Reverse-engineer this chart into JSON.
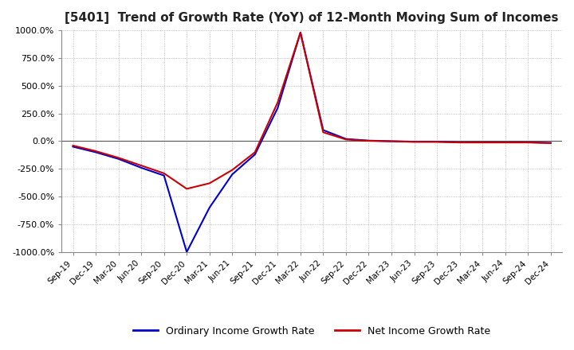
{
  "title": "[5401]  Trend of Growth Rate (YoY) of 12-Month Moving Sum of Incomes",
  "title_fontsize": 11,
  "ylim": [
    -1000,
    1000
  ],
  "yticks": [
    -1000,
    -750,
    -500,
    -250,
    0,
    250,
    500,
    750,
    1000
  ],
  "ytick_labels": [
    "-1000.0%",
    "-750.0%",
    "-500.0%",
    "-250.0%",
    "0.0%",
    "250.0%",
    "500.0%",
    "750.0%",
    "1000.0%"
  ],
  "background_color": "#ffffff",
  "plot_background": "#ffffff",
  "grid_color": "#aaaaaa",
  "legend_labels": [
    "Ordinary Income Growth Rate",
    "Net Income Growth Rate"
  ],
  "legend_colors": [
    "#0000cc",
    "#cc0000"
  ],
  "x_labels": [
    "Sep-19",
    "Dec-19",
    "Mar-20",
    "Jun-20",
    "Sep-20",
    "Dec-20",
    "Mar-21",
    "Jun-21",
    "Sep-21",
    "Dec-21",
    "Mar-22",
    "Jun-22",
    "Sep-22",
    "Dec-22",
    "Mar-23",
    "Jun-23",
    "Sep-23",
    "Dec-23",
    "Mar-24",
    "Jun-24",
    "Sep-24",
    "Dec-24"
  ],
  "ordinary_income": [
    -50,
    -100,
    -160,
    -240,
    -310,
    -1000,
    -600,
    -300,
    -120,
    300,
    980,
    100,
    20,
    5,
    0,
    -5,
    -5,
    -10,
    -10,
    -10,
    -10,
    -15
  ],
  "net_income": [
    -40,
    -90,
    -150,
    -220,
    -290,
    -430,
    -380,
    -260,
    -100,
    350,
    980,
    80,
    15,
    3,
    -2,
    -6,
    -6,
    -12,
    -12,
    -12,
    -12,
    -18
  ]
}
